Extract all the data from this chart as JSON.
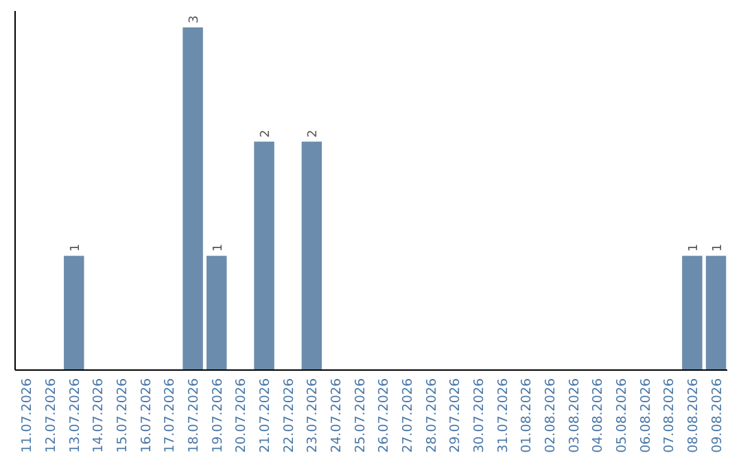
{
  "chart_data": {
    "type": "bar",
    "categories": [
      "11.07.2026",
      "12.07.2026",
      "13.07.2026",
      "14.07.2026",
      "15.07.2026",
      "16.07.2026",
      "17.07.2026",
      "18.07.2026",
      "19.07.2026",
      "20.07.2026",
      "21.07.2026",
      "22.07.2026",
      "23.07.2026",
      "24.07.2026",
      "25.07.2026",
      "26.07.2026",
      "27.07.2026",
      "28.07.2026",
      "29.07.2026",
      "30.07.2026",
      "31.07.2026",
      "01.08.2026",
      "02.08.2026",
      "03.08.2026",
      "04.08.2026",
      "05.08.2026",
      "06.08.2026",
      "07.08.2026",
      "08.08.2026",
      "09.08.2026"
    ],
    "values": [
      0,
      0,
      1,
      0,
      0,
      0,
      0,
      3,
      1,
      0,
      2,
      0,
      2,
      0,
      0,
      0,
      0,
      0,
      0,
      0,
      0,
      0,
      0,
      0,
      0,
      0,
      0,
      0,
      1,
      1
    ],
    "value_labels": [
      null,
      null,
      "1",
      null,
      null,
      null,
      null,
      "3",
      "1",
      null,
      "2",
      null,
      "2",
      null,
      null,
      null,
      null,
      null,
      null,
      null,
      null,
      null,
      null,
      null,
      null,
      null,
      null,
      null,
      "1",
      "1"
    ],
    "color": "#6b8cac",
    "tick_labels": "x"
  }
}
